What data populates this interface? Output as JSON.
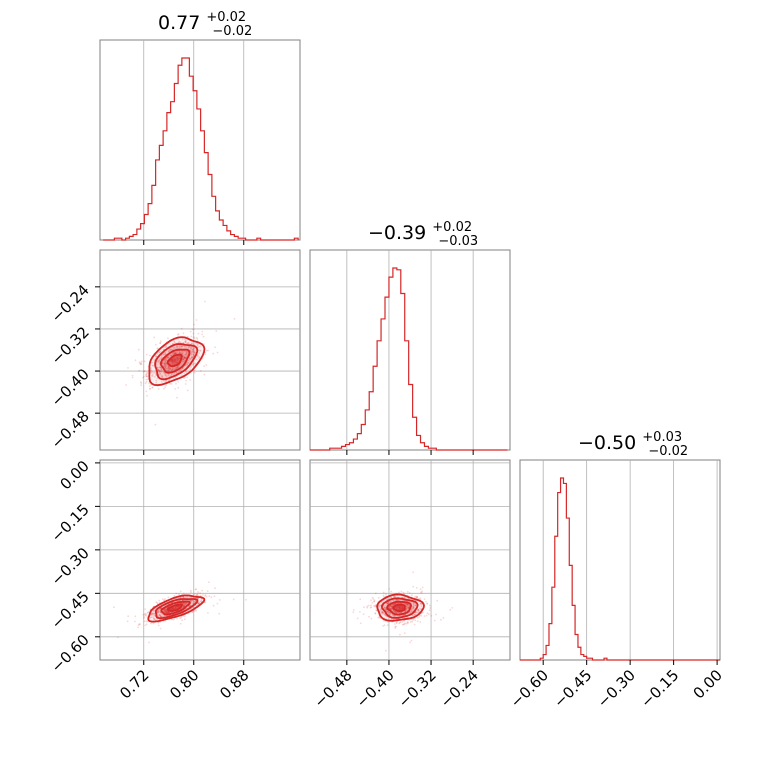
{
  "chart_data": {
    "type": "corner",
    "color": "#d62728",
    "params": [
      {
        "index": 0,
        "median": 0.77,
        "plus": "+0.02",
        "minus": "−0.02",
        "title_main": "0.77",
        "range": [
          0.65,
          0.97
        ],
        "ticks": [
          0.72,
          0.8,
          0.88
        ],
        "tick_labels": [
          "0.72",
          "0.80",
          "0.88"
        ]
      },
      {
        "index": 1,
        "median": -0.39,
        "plus": "+0.02",
        "minus": "−0.03",
        "title_main": "−0.39",
        "range": [
          -0.55,
          -0.17
        ],
        "ticks": [
          -0.48,
          -0.4,
          -0.32,
          -0.24
        ],
        "tick_labels": [
          "−0.48",
          "−0.40",
          "−0.32",
          "−0.24"
        ]
      },
      {
        "index": 2,
        "median": -0.5,
        "plus": "+0.03",
        "minus": "−0.02",
        "title_main": "−0.50",
        "range": [
          -0.68,
          0.01
        ],
        "ticks": [
          -0.6,
          -0.45,
          -0.3,
          -0.15,
          0.0
        ],
        "tick_labels": [
          "−0.60",
          "−0.45",
          "−0.30",
          "−0.15",
          "0.00"
        ]
      }
    ],
    "histograms": [
      {
        "param": 0,
        "bin_edges_start": 0.655,
        "bin_width": 0.006,
        "counts": [
          0,
          0,
          0,
          1,
          1,
          0,
          1,
          2,
          3,
          6,
          9,
          14,
          20,
          30,
          44,
          52,
          60,
          70,
          76,
          86,
          96,
          100,
          100,
          90,
          82,
          72,
          60,
          48,
          36,
          24,
          16,
          11,
          8,
          5,
          3,
          2,
          1,
          1,
          0,
          0,
          0,
          1,
          0,
          0,
          0,
          0,
          0,
          0,
          0,
          0,
          0,
          1
        ]
      },
      {
        "param": 1,
        "bin_edges_start": -0.55,
        "bin_width": 0.0075,
        "counts": [
          0,
          0,
          0,
          0,
          0,
          1,
          1,
          1,
          2,
          3,
          4,
          6,
          9,
          14,
          22,
          32,
          46,
          60,
          72,
          84,
          95,
          100,
          99,
          86,
          60,
          36,
          18,
          8,
          4,
          2,
          1,
          1,
          0,
          0,
          0,
          0,
          0,
          0,
          0,
          0,
          0,
          0,
          0,
          0,
          0,
          0,
          0,
          0,
          0,
          0
        ]
      },
      {
        "param": 2,
        "bin_edges_start": -0.68,
        "bin_width": 0.01,
        "counts": [
          0,
          0,
          0,
          0,
          0,
          0,
          0,
          1,
          3,
          8,
          20,
          40,
          68,
          92,
          100,
          97,
          78,
          52,
          30,
          14,
          7,
          3,
          2,
          1,
          1,
          0,
          0,
          0,
          0,
          1,
          0,
          0,
          0,
          0,
          0,
          0,
          0,
          0,
          0,
          0,
          0,
          0,
          0,
          0,
          0,
          0,
          0,
          0,
          0,
          0,
          0,
          0,
          0,
          0,
          0,
          0,
          0,
          0,
          0,
          0,
          0,
          0,
          0,
          0,
          0,
          0,
          0,
          0,
          0
        ]
      }
    ],
    "joint": [
      {
        "x_param": 0,
        "y_param": 1,
        "mean": [
          0.77,
          -0.38
        ],
        "sd": [
          0.022,
          0.022
        ],
        "corr": 0.45
      },
      {
        "x_param": 0,
        "y_param": 2,
        "mean": [
          0.77,
          -0.5
        ],
        "sd": [
          0.022,
          0.022
        ],
        "corr": 0.65
      },
      {
        "x_param": 1,
        "y_param": 2,
        "mean": [
          -0.38,
          -0.5
        ],
        "sd": [
          0.022,
          0.022
        ],
        "corr": 0.05
      }
    ],
    "contour_levels_sigma": [
      0.5,
      1.0,
      1.5,
      2.0
    ],
    "grid": true
  }
}
